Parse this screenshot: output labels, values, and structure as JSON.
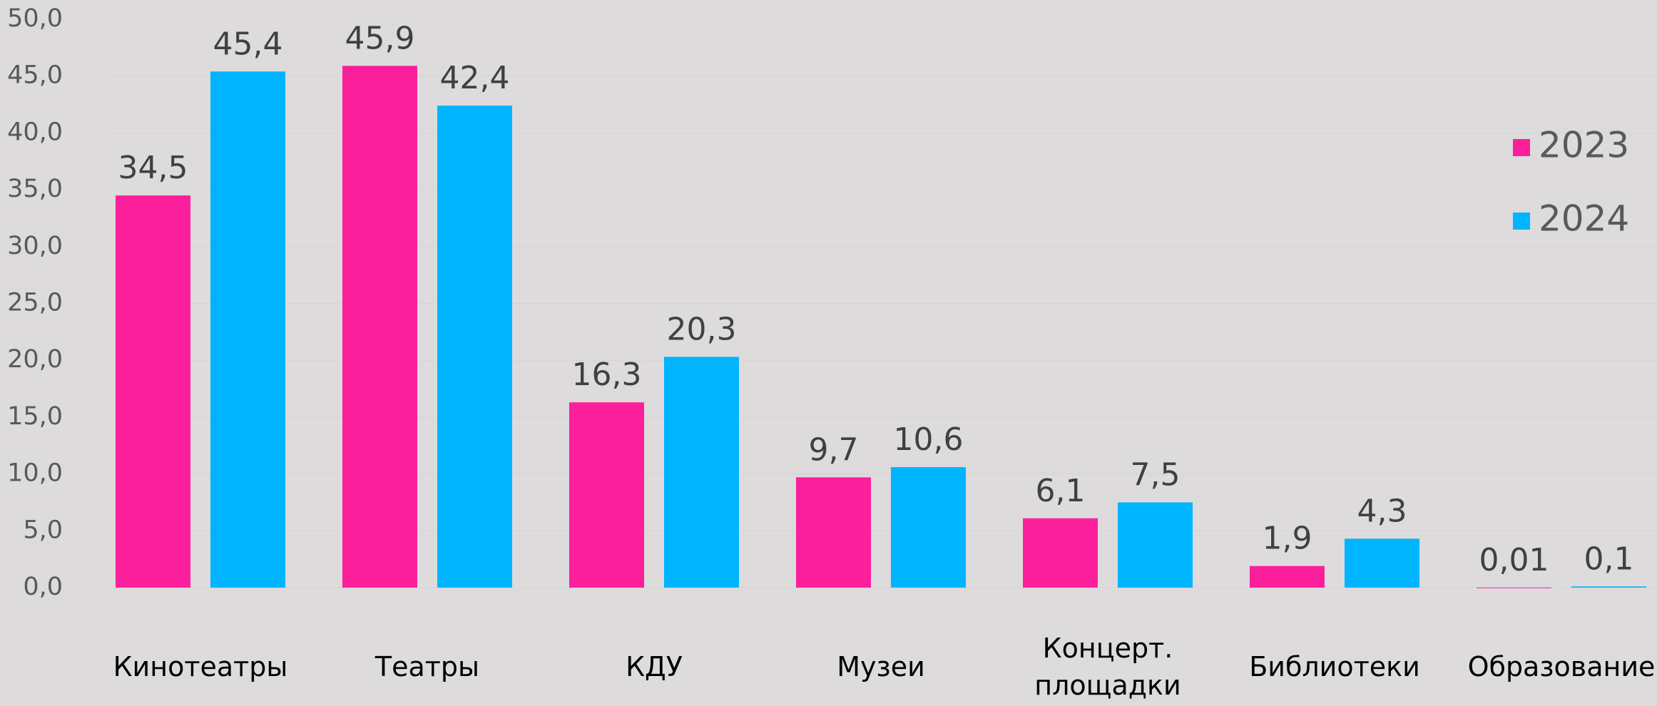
{
  "chart_data": {
    "type": "bar",
    "categories": [
      "Кинотеатры",
      "Театры",
      "КДУ",
      "Музеи",
      "Концерт. площадки",
      "Библиотеки",
      "Образование"
    ],
    "series": [
      {
        "name": "2023",
        "color": "#fc1f9b",
        "values": [
          34.5,
          45.9,
          16.3,
          9.7,
          6.1,
          1.9,
          0.01
        ],
        "value_labels": [
          "34,5",
          "45,9",
          "16,3",
          "9,7",
          "6,1",
          "1,9",
          "0,01"
        ]
      },
      {
        "name": "2024",
        "color": "#00b4ff",
        "values": [
          45.4,
          42.4,
          20.3,
          10.6,
          7.5,
          4.3,
          0.1
        ],
        "value_labels": [
          "45,4",
          "42,4",
          "20,3",
          "10,6",
          "7,5",
          "4,3",
          "0,1"
        ]
      }
    ],
    "ylim": [
      0,
      50
    ],
    "yticks": [
      {
        "value": 0,
        "label": "0,0"
      },
      {
        "value": 5,
        "label": "5,0"
      },
      {
        "value": 10,
        "label": "10,0"
      },
      {
        "value": 15,
        "label": "15,0"
      },
      {
        "value": 20,
        "label": "20,0"
      },
      {
        "value": 25,
        "label": "25,0"
      },
      {
        "value": 30,
        "label": "30,0"
      },
      {
        "value": 35,
        "label": "35,0"
      },
      {
        "value": 40,
        "label": "40,0"
      },
      {
        "value": 45,
        "label": "45,0"
      },
      {
        "value": 50,
        "label": "50,0"
      }
    ],
    "grid": true,
    "legend": "right"
  }
}
